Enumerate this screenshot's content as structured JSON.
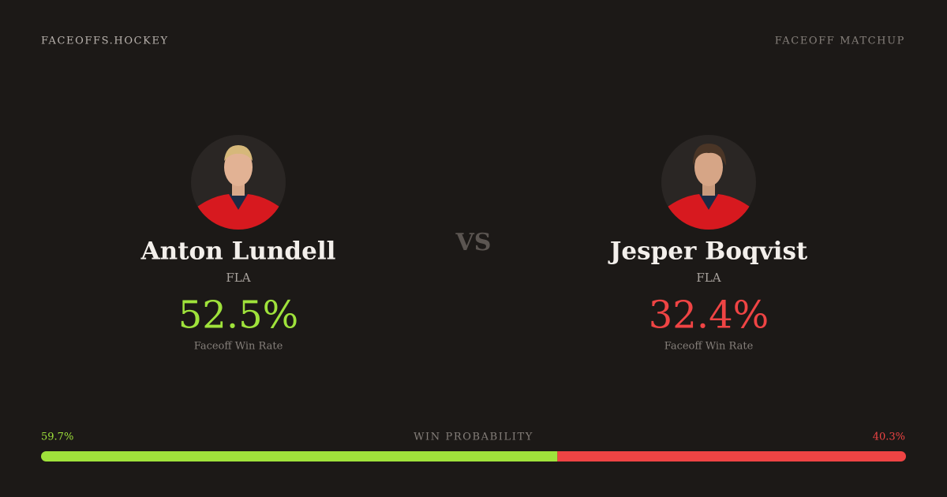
{
  "header": {
    "brand": "FACEOFFS.HOCKEY",
    "label": "FACEOFF MATCHUP"
  },
  "players": [
    {
      "name": "Anton Lundell",
      "team": "FLA",
      "win_rate": "52.5%",
      "rate_label": "Faceoff Win Rate",
      "color": "#9fe23b"
    },
    {
      "name": "Jesper Boqvist",
      "team": "FLA",
      "win_rate": "32.4%",
      "rate_label": "Faceoff Win Rate",
      "color": "#ef4444"
    }
  ],
  "vs": "VS",
  "win_probability": {
    "title": "WIN PROBABILITY",
    "values": [
      {
        "value": 59.7,
        "label": "59.7%"
      },
      {
        "value": 40.3,
        "label": "40.3%"
      }
    ]
  }
}
